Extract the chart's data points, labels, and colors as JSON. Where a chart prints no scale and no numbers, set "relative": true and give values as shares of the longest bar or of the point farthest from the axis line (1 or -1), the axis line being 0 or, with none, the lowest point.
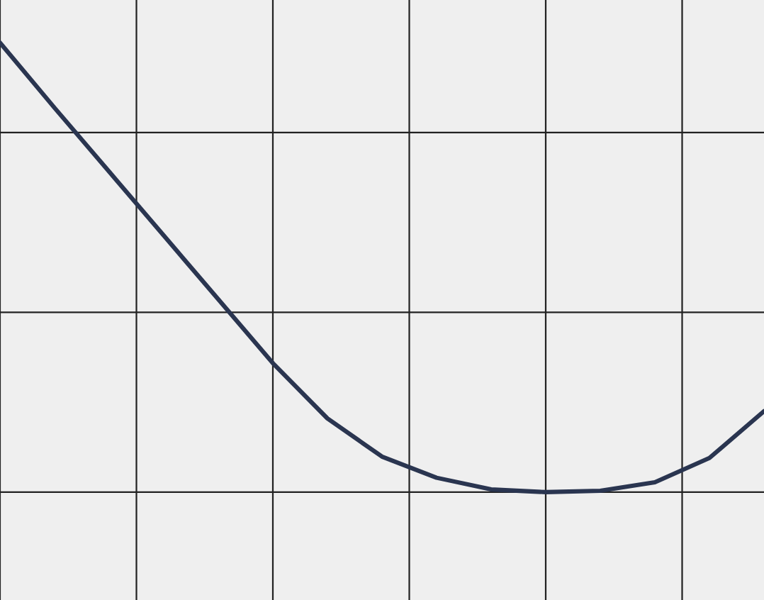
{
  "chart_data": {
    "type": "line",
    "relative": true,
    "grid": true,
    "tick_labels": false,
    "categories": [
      null,
      null,
      null,
      null,
      null,
      null,
      null,
      null,
      null,
      null,
      null,
      null,
      null,
      null,
      null
    ],
    "series": [
      {
        "color": "#2a3550",
        "values": [
          1.0,
          0.855,
          0.713,
          0.571,
          0.429,
          0.287,
          0.164,
          0.079,
          0.032,
          0.006,
          0.0,
          0.003,
          0.022,
          0.076,
          0.18
        ]
      }
    ]
  }
}
